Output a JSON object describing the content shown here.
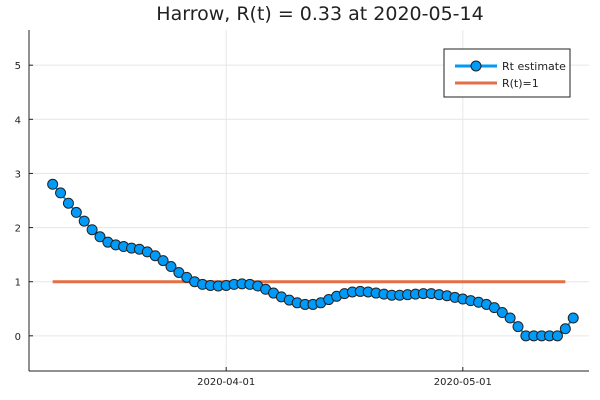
{
  "chart_data": {
    "type": "line",
    "title": "Harrow, R(t) = 0.33 at 2020-05-14",
    "xlabel": "",
    "ylabel": "",
    "x_start": "2020-03-10",
    "x_end": "2020-05-14",
    "xlim": [
      "2020-03-07",
      "2020-05-17"
    ],
    "ylim": [
      -0.65,
      5.65
    ],
    "x_ticks": [
      {
        "date": "2020-04-01",
        "label": "2020-04-01"
      },
      {
        "date": "2020-05-01",
        "label": "2020-05-01"
      }
    ],
    "y_ticks": [
      0,
      1,
      2,
      3,
      4,
      5
    ],
    "y_tick_labels": [
      "0",
      "1",
      "2",
      "3",
      "4",
      "5"
    ],
    "grid": true,
    "legend_position": "top-right",
    "series": [
      {
        "name": "Rt estimate",
        "color": "#009af9",
        "marker": "circle",
        "values": [
          2.8,
          2.64,
          2.45,
          2.28,
          2.12,
          1.96,
          1.83,
          1.73,
          1.68,
          1.65,
          1.62,
          1.6,
          1.55,
          1.48,
          1.39,
          1.28,
          1.17,
          1.08,
          1.0,
          0.95,
          0.93,
          0.92,
          0.93,
          0.95,
          0.96,
          0.95,
          0.92,
          0.86,
          0.79,
          0.72,
          0.66,
          0.61,
          0.58,
          0.58,
          0.61,
          0.67,
          0.73,
          0.78,
          0.81,
          0.82,
          0.81,
          0.79,
          0.77,
          0.75,
          0.75,
          0.76,
          0.77,
          0.78,
          0.78,
          0.76,
          0.74,
          0.71,
          0.68,
          0.65,
          0.62,
          0.58,
          0.52,
          0.43,
          0.33,
          0.17,
          0.0,
          0.0,
          0.0,
          0.0,
          0.0,
          0.13,
          0.33
        ]
      },
      {
        "name": "R(t)=1",
        "color": "#e26f46",
        "marker": "none",
        "values": [
          1,
          1
        ]
      }
    ]
  }
}
